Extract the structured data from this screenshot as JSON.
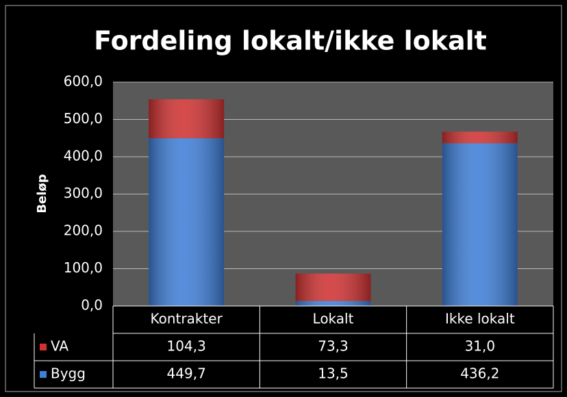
{
  "chart_data": {
    "type": "bar",
    "stacked": true,
    "title": "Fordeling lokalt/ikke lokalt",
    "ylabel": "Beløp",
    "categories": [
      "Kontrakter",
      "Lokalt",
      "Ikke lokalt"
    ],
    "series": [
      {
        "name": "VA",
        "color": "#d03232",
        "values": [
          104.3,
          73.3,
          31.0
        ],
        "value_labels": [
          "104,3",
          "73,3",
          "31,0"
        ]
      },
      {
        "name": "Bygg",
        "color": "#3f7fd8",
        "values": [
          449.7,
          13.5,
          436.2
        ],
        "value_labels": [
          "449,7",
          "13,5",
          "436,2"
        ]
      }
    ],
    "ylim": [
      0,
      600
    ],
    "yticks": [
      {
        "value": 0,
        "label": "0,0"
      },
      {
        "value": 100,
        "label": "100,0"
      },
      {
        "value": 200,
        "label": "200,0"
      },
      {
        "value": 300,
        "label": "300,0"
      },
      {
        "value": 400,
        "label": "400,0"
      },
      {
        "value": 500,
        "label": "500,0"
      },
      {
        "value": 600,
        "label": "600,0"
      }
    ],
    "grid": true,
    "data_table": true
  }
}
